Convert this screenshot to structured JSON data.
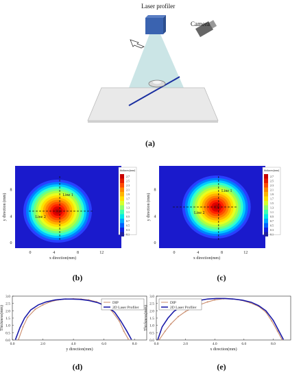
{
  "setup": {
    "laser_label": "Laser profiler",
    "camera_label": "Camera",
    "caption": "(a)"
  },
  "heatmaps": [
    {
      "caption": "(b)",
      "legend_title": "thickness(mm)",
      "legend_values": [
        "2.7",
        "2.5",
        "2.3",
        "2.1",
        "1.9",
        "1.7",
        "1.5",
        "1.3",
        "1.1",
        "0.9",
        "0.7",
        "0.5",
        "0.3",
        "0.1"
      ],
      "x_ticks": [
        "0",
        "4",
        "8",
        "12"
      ],
      "y_ticks": [
        "0",
        "4",
        "8"
      ],
      "xlabel": "x direction(mm)",
      "ylabel": "y direction (mm)",
      "line1": "Line 1",
      "line2": "Line 2"
    },
    {
      "caption": "(c)",
      "legend_title": "thickness(mm)",
      "legend_values": [
        "2.7",
        "2.5",
        "2.3",
        "2.1",
        "1.9",
        "1.7",
        "1.5",
        "1.3",
        "1.1",
        "0.9",
        "0.7",
        "0.5",
        "0.3",
        "0.1"
      ],
      "x_ticks": [
        "0",
        "4",
        "8",
        "12"
      ],
      "y_ticks": [
        "0",
        "4",
        "8"
      ],
      "xlabel": "x direction(mm)",
      "ylabel": "y direction (mm)",
      "line1": "Line 1",
      "line2": "Line 2"
    }
  ],
  "chart_data": [
    {
      "type": "line",
      "caption": "(d)",
      "xlabel": "y direction(mm)",
      "ylabel": "Thickness(mm)",
      "xlim": [
        0,
        8.8
      ],
      "ylim": [
        0,
        3.0
      ],
      "x_ticks": [
        "0.0",
        "2.0",
        "4.0",
        "6.0",
        "8.0"
      ],
      "y_ticks": [
        "0.0",
        "0.5",
        "1.0",
        "1.5",
        "2.0",
        "2.5",
        "3.0"
      ],
      "legend": [
        "DIP",
        "2D Laser Profiler"
      ],
      "series": [
        {
          "name": "DIP",
          "color": "#c98a6a",
          "x": [
            0.4,
            0.7,
            1.0,
            1.5,
            2.0,
            2.5,
            3.0,
            3.5,
            4.0,
            4.5,
            5.0,
            5.5,
            6.0,
            6.5,
            7.0,
            7.3,
            7.6
          ],
          "y": [
            0.02,
            0.9,
            1.55,
            2.1,
            2.4,
            2.62,
            2.74,
            2.8,
            2.82,
            2.8,
            2.74,
            2.62,
            2.4,
            2.0,
            1.3,
            0.6,
            0.05
          ]
        },
        {
          "name": "2D Laser Profiler",
          "color": "#1a1aa8",
          "x": [
            0.2,
            0.5,
            0.8,
            1.2,
            1.7,
            2.2,
            2.8,
            3.4,
            3.9,
            4.4,
            5.0,
            5.6,
            6.2,
            6.7,
            7.1,
            7.5,
            7.8
          ],
          "y": [
            0.02,
            0.85,
            1.5,
            2.05,
            2.4,
            2.6,
            2.74,
            2.8,
            2.8,
            2.78,
            2.7,
            2.55,
            2.3,
            1.9,
            1.3,
            0.6,
            0.03
          ]
        }
      ]
    },
    {
      "type": "line",
      "caption": "(e)",
      "xlabel": "x direction(mm)",
      "ylabel": "Thickness(mm)",
      "xlim": [
        0,
        9.2
      ],
      "ylim": [
        0,
        3.0
      ],
      "x_ticks": [
        "0.0",
        "2.0",
        "4.0",
        "6.0",
        "8.0"
      ],
      "y_ticks": [
        "0.0",
        "0.5",
        "1.0",
        "1.5",
        "2.0",
        "2.5",
        "3.0"
      ],
      "legend": [
        "DIP",
        "2D Laser Profiler"
      ],
      "series": [
        {
          "name": "DIP",
          "color": "#c98a6a",
          "x": [
            0.2,
            0.6,
            1.0,
            1.5,
            2.0,
            2.5,
            3.0,
            3.5,
            4.0,
            4.6,
            5.2,
            5.8,
            6.4,
            7.0,
            7.5,
            7.9,
            8.3,
            8.6
          ],
          "y": [
            0.02,
            0.6,
            1.1,
            1.6,
            1.95,
            2.2,
            2.42,
            2.6,
            2.74,
            2.82,
            2.8,
            2.72,
            2.55,
            2.3,
            1.9,
            1.3,
            0.6,
            0.03
          ]
        },
        {
          "name": "2D Laser Profiler",
          "color": "#1a1aa8",
          "x": [
            0.1,
            0.4,
            0.8,
            1.2,
            1.7,
            2.3,
            2.9,
            3.5,
            4.1,
            4.7,
            5.3,
            5.9,
            6.5,
            7.0,
            7.5,
            8.0,
            8.4,
            8.7
          ],
          "y": [
            0.02,
            0.9,
            1.5,
            1.95,
            2.3,
            2.55,
            2.7,
            2.8,
            2.84,
            2.84,
            2.8,
            2.72,
            2.58,
            2.35,
            2.0,
            1.35,
            0.6,
            0.03
          ]
        }
      ]
    }
  ]
}
